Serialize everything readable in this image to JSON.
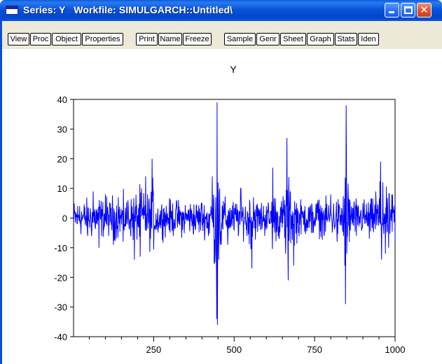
{
  "window": {
    "title": "Series: Y   Workfile: SIMULGARCH::Untitled\\",
    "icon": "window-icon",
    "controls": {
      "minimize": "minimize-icon",
      "maximize": "maximize-icon",
      "close": "close-icon"
    }
  },
  "toolbar": {
    "buttons": [
      {
        "label": "View"
      },
      {
        "label": "Proc"
      },
      {
        "label": "Object"
      },
      {
        "label": "Properties"
      },
      {
        "label": "Print"
      },
      {
        "label": "Name"
      },
      {
        "label": "Freeze"
      },
      {
        "label": "Sample"
      },
      {
        "label": "Genr"
      },
      {
        "label": "Sheet"
      },
      {
        "label": "Graph"
      },
      {
        "label": "Stats"
      },
      {
        "label": "Iden"
      }
    ]
  },
  "colors": {
    "series_line": "#0000ff",
    "title_bar": "#0a53d8",
    "toolbar_bg": "#ece9d8"
  },
  "chart_data": {
    "type": "line",
    "title": "Y",
    "xlabel": "",
    "ylabel": "",
    "xlim": [
      1,
      1000
    ],
    "ylim": [
      -40,
      40
    ],
    "x_ticks": [
      250,
      500,
      750,
      1000
    ],
    "y_ticks": [
      -40,
      -30,
      -20,
      -10,
      0,
      10,
      20,
      30,
      40
    ],
    "grid": false,
    "series": [
      {
        "x": [
          1,
          20,
          45,
          62,
          80,
          100,
          125,
          140,
          155,
          170,
          190,
          208,
          212,
          225,
          240,
          245,
          260,
          280,
          300,
          320,
          340,
          360,
          380,
          400,
          420,
          432,
          440,
          446,
          447,
          448,
          450,
          452,
          455,
          460,
          470,
          480,
          500,
          520,
          540,
          555,
          560,
          580,
          600,
          610,
          618,
          620,
          640,
          660,
          664,
          668,
          675,
          685,
          700,
          720,
          740,
          760,
          780,
          800,
          820,
          840,
          846,
          848,
          850,
          860,
          880,
          900,
          920,
          940,
          955,
          958,
          962,
          970,
          980,
          990,
          1000
        ],
        "values": [
          -2,
          4,
          -6,
          9,
          -10,
          8,
          -9,
          7,
          -8,
          6,
          -14,
          -13,
          10,
          14,
          -7,
          20,
          -4,
          3,
          -3,
          4,
          -4,
          3,
          -4,
          5,
          -6,
          14,
          -15,
          -34,
          39,
          -36,
          12,
          -14,
          10,
          -9,
          5,
          -9,
          -4,
          10,
          -6,
          -17,
          7,
          -2,
          4,
          -2,
          -5,
          17,
          -7,
          -12,
          27,
          -21,
          9,
          -16,
          -5,
          4,
          -5,
          6,
          -6,
          8,
          -8,
          -6,
          -29,
          38,
          -12,
          6,
          -6,
          5,
          -7,
          9,
          19,
          -14,
          12,
          -12,
          -10,
          8,
          -7
        ]
      }
    ]
  }
}
